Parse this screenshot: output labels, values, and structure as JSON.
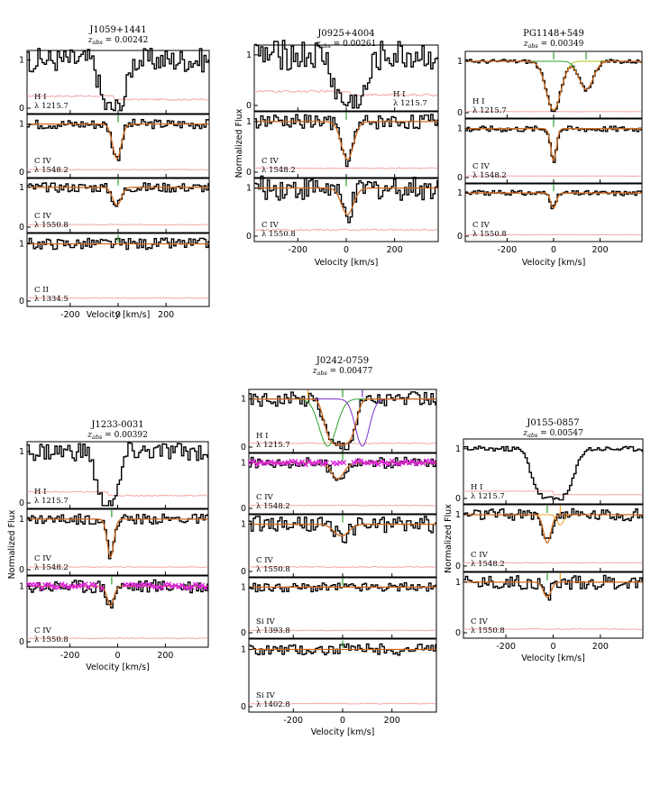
{
  "colors": {
    "data": "#000000",
    "error": "#f4a6a6",
    "fit_total": "#d2691e",
    "comp_green": "#2ca02c",
    "comp_orange": "#f0a020",
    "comp_purple": "#7b2fd0",
    "comp_magenta": "#dd22dd",
    "comp_yellowgreen": "#b5c21a"
  },
  "chart_data": [
    {
      "id": "J1059",
      "type": "line",
      "title": "J1059+1441",
      "subtitle_prefix": "z",
      "subtitle_sub": "abs",
      "subtitle_value": " = 0.00242",
      "xlabel": "Velocity [km/s]",
      "ylabel": "",
      "xlim": [
        -380,
        380
      ],
      "xticks": [
        -200,
        0,
        200
      ],
      "panels": [
        {
          "ion": "H I",
          "wave": "λ 1215.7",
          "shape": "hi_narrow",
          "center": -20,
          "width": 55,
          "depth": 1.0,
          "noise": 0.25,
          "fit": false,
          "marks": [],
          "ylabels": [
            "1",
            "0"
          ]
        },
        {
          "ion": "C IV",
          "wave": "λ 1548.2",
          "shape": "gauss",
          "center": -5,
          "width": 18,
          "depth": 0.72,
          "noise": 0.1,
          "fit": true,
          "marks": [
            {
              "v": 0,
              "c": "comp_green"
            }
          ],
          "ylabels": [
            "1",
            "0"
          ]
        },
        {
          "ion": "C IV",
          "wave": "λ 1550.8",
          "shape": "gauss",
          "center": -5,
          "width": 18,
          "depth": 0.45,
          "noise": 0.12,
          "fit": true,
          "marks": [
            {
              "v": 0,
              "c": "comp_green"
            }
          ],
          "ylabels": [
            "1",
            "0"
          ]
        },
        {
          "ion": "C II",
          "wave": "λ 1334.5",
          "shape": "flat",
          "center": 0,
          "width": 10,
          "depth": 0.05,
          "noise": 0.1,
          "fit": true,
          "marks": [
            {
              "v": 0,
              "c": "comp_green"
            }
          ],
          "ylabels": [
            "1",
            "0"
          ]
        }
      ]
    },
    {
      "id": "J0925",
      "type": "line",
      "title": "J0925+4004",
      "subtitle_prefix": "z",
      "subtitle_sub": "abs",
      "subtitle_value": " = 0.00261",
      "xlabel": "Velocity [km/s]",
      "ylabel": "Normalized Flux",
      "xlim": [
        -380,
        380
      ],
      "xticks": [
        -200,
        0,
        200
      ],
      "panels": [
        {
          "ion": "H I",
          "wave": "λ 1215.7",
          "shape": "hi_wide",
          "center": 20,
          "width": 70,
          "depth": 0.95,
          "noise": 0.3,
          "fit": false,
          "marks": [],
          "ylabels": [
            "1",
            "0"
          ]
        },
        {
          "ion": "C IV",
          "wave": "λ 1548.2",
          "shape": "gauss",
          "center": 5,
          "width": 25,
          "depth": 0.75,
          "noise": 0.15,
          "fit": true,
          "marks": [
            {
              "v": 0,
              "c": "comp_green"
            }
          ],
          "ylabels": [
            "1",
            "0"
          ]
        },
        {
          "ion": "C IV",
          "wave": "λ 1550.8",
          "shape": "gauss",
          "center": 5,
          "width": 25,
          "depth": 0.55,
          "noise": 0.25,
          "fit": true,
          "marks": [
            {
              "v": 0,
              "c": "comp_green"
            }
          ],
          "ylabels": [
            "1",
            "0"
          ]
        }
      ]
    },
    {
      "id": "PG1148",
      "type": "line",
      "title": "PG1148+549",
      "subtitle_prefix": "z",
      "subtitle_sub": "abs",
      "subtitle_value": " = 0.00349",
      "xlabel": "Velocity [km/s]",
      "ylabel": "",
      "xlim": [
        -380,
        380
      ],
      "xticks": [
        -200,
        0,
        200
      ],
      "panels": [
        {
          "ion": "H I",
          "wave": "λ 1215.7",
          "shape": "two_comp",
          "center": 0,
          "width": 32,
          "depth": 0.95,
          "center2": 140,
          "width2": 30,
          "depth2": 0.55,
          "noise": 0.04,
          "fit": true,
          "comps": [
            "comp_yellowgreen",
            "comp_green"
          ],
          "marks": [
            {
              "v": 0,
              "c": "comp_green"
            },
            {
              "v": 140,
              "c": "comp_green"
            }
          ],
          "ylabels": [
            "1",
            "0"
          ]
        },
        {
          "ion": "C IV",
          "wave": "λ 1548.2",
          "shape": "gauss",
          "center": 0,
          "width": 12,
          "depth": 0.65,
          "noise": 0.06,
          "fit": true,
          "marks": [
            {
              "v": 0,
              "c": "comp_green"
            }
          ],
          "ylabels": [
            "1",
            "0"
          ]
        },
        {
          "ion": "C IV",
          "wave": "λ 1550.8",
          "shape": "gauss",
          "center": 0,
          "width": 12,
          "depth": 0.35,
          "noise": 0.06,
          "fit": true,
          "marks": [
            {
              "v": 0,
              "c": "comp_green"
            }
          ],
          "ylabels": [
            "1",
            "0"
          ]
        }
      ]
    },
    {
      "id": "J1233",
      "type": "line",
      "title": "J1233-0031",
      "subtitle_prefix": "z",
      "subtitle_sub": "abs",
      "subtitle_value": " = 0.00392",
      "xlabel": "Velocity [km/s]",
      "ylabel": "Normalized Flux",
      "xlim": [
        -380,
        380
      ],
      "xticks": [
        -200,
        0,
        200
      ],
      "panels": [
        {
          "ion": "H I",
          "wave": "λ 1215.7",
          "shape": "hi_narrow",
          "center": -40,
          "width": 50,
          "depth": 1.0,
          "noise": 0.18,
          "fit": false,
          "marks": [],
          "ylabels": [
            "1",
            "0"
          ]
        },
        {
          "ion": "C IV",
          "wave": "λ 1548.2",
          "shape": "gauss",
          "center": -30,
          "width": 14,
          "depth": 0.75,
          "noise": 0.1,
          "fit": true,
          "marks": [
            {
              "v": -25,
              "c": "comp_green"
            }
          ],
          "ylabels": [
            "1",
            "0"
          ]
        },
        {
          "ion": "C IV",
          "wave": "λ 1550.8",
          "shape": "gauss",
          "center": -30,
          "width": 14,
          "depth": 0.35,
          "noise": 0.12,
          "fit": true,
          "marks": [
            {
              "v": -25,
              "c": "comp_green"
            }
          ],
          "magenta": true,
          "ylabels": [
            "1",
            "0"
          ]
        }
      ]
    },
    {
      "id": "J0242",
      "type": "line",
      "title": "J0242-0759",
      "subtitle_prefix": "z",
      "subtitle_sub": "abs",
      "subtitle_value": " = 0.00477",
      "xlabel": "Velocity [km/s]",
      "ylabel": "",
      "xlim": [
        -380,
        380
      ],
      "xticks": [
        -200,
        0,
        200
      ],
      "panels": [
        {
          "ion": "H I",
          "wave": "λ 1215.7",
          "shape": "three_comp",
          "noise": 0.15,
          "fit": true,
          "comps": [
            "comp_green",
            "comp_purple"
          ],
          "marks": [
            {
              "v": -140,
              "c": "comp_orange"
            },
            {
              "v": 0,
              "c": "comp_green"
            },
            {
              "v": 80,
              "c": "comp_purple"
            }
          ],
          "ylabels": [
            "1",
            "0"
          ]
        },
        {
          "ion": "C IV",
          "wave": "λ 1548.2",
          "shape": "gauss",
          "center": -20,
          "width": 25,
          "depth": 0.35,
          "noise": 0.12,
          "fit": true,
          "marks": [
            {
              "v": 0,
              "c": "comp_green"
            }
          ],
          "magenta": true,
          "ylabels": [
            "1",
            "0"
          ]
        },
        {
          "ion": "C IV",
          "wave": "λ 1550.8",
          "shape": "gauss",
          "center": -5,
          "width": 30,
          "depth": 0.25,
          "noise": 0.18,
          "fit": true,
          "marks": [
            {
              "v": 0,
              "c": "comp_green"
            }
          ],
          "ylabels": [
            "1",
            "0"
          ]
        },
        {
          "ion": "Si IV",
          "wave": "λ 1393.8",
          "shape": "flat",
          "center": 0,
          "width": 10,
          "depth": 0.1,
          "noise": 0.1,
          "fit": true,
          "marks": [
            {
              "v": 0,
              "c": "comp_green"
            }
          ],
          "ylabels": [
            "1",
            "0"
          ]
        },
        {
          "ion": "Si IV",
          "wave": "λ 1402.8",
          "shape": "flat",
          "center": 0,
          "width": 10,
          "depth": 0.1,
          "noise": 0.1,
          "fit": true,
          "marks": [
            {
              "v": 0,
              "c": "comp_green"
            }
          ],
          "ylabels": [
            "1",
            "0"
          ]
        }
      ]
    },
    {
      "id": "J0155",
      "type": "line",
      "title": "J0155-0857",
      "subtitle_prefix": "z",
      "subtitle_sub": "abs",
      "subtitle_value": " = 0.00547",
      "xlabel": "Velocity [km/s]",
      "ylabel": "Normalized Flux",
      "xlim": [
        -380,
        380
      ],
      "xticks": [
        -200,
        0,
        200
      ],
      "panels": [
        {
          "ion": "H I",
          "wave": "λ 1215.7",
          "shape": "hi_wide",
          "center": 0,
          "width": 85,
          "depth": 1.0,
          "noise": 0.05,
          "fit": false,
          "marks": [],
          "ylabels": [
            "1",
            "0"
          ]
        },
        {
          "ion": "C IV",
          "wave": "λ 1548.2",
          "shape": "gauss",
          "center": -25,
          "width": 16,
          "depth": 0.55,
          "noise": 0.12,
          "fit": true,
          "comps": [
            "comp_yellowgreen",
            "comp_orange"
          ],
          "marks": [
            {
              "v": -25,
              "c": "comp_green"
            },
            {
              "v": 30,
              "c": "comp_orange"
            }
          ],
          "ylabels": [
            "1",
            "0"
          ]
        },
        {
          "ion": "C IV",
          "wave": "λ 1550.8",
          "shape": "gauss",
          "center": -25,
          "width": 16,
          "depth": 0.3,
          "noise": 0.14,
          "fit": true,
          "marks": [
            {
              "v": -25,
              "c": "comp_green"
            },
            {
              "v": 30,
              "c": "comp_orange"
            }
          ],
          "ylabels": [
            "1",
            "0"
          ]
        }
      ]
    }
  ]
}
